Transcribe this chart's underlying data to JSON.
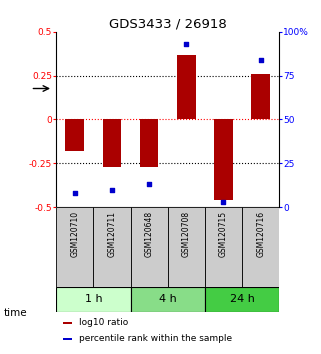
{
  "title": "GDS3433 / 26918",
  "samples": [
    "GSM120710",
    "GSM120711",
    "GSM120648",
    "GSM120708",
    "GSM120715",
    "GSM120716"
  ],
  "log10_ratio": [
    -0.18,
    -0.27,
    -0.27,
    0.37,
    -0.46,
    0.26
  ],
  "percentile_rank": [
    8,
    10,
    13,
    93,
    3,
    84
  ],
  "groups": [
    {
      "label": "1 h",
      "samples": [
        0,
        1
      ],
      "color": "#ccffcc"
    },
    {
      "label": "4 h",
      "samples": [
        2,
        3
      ],
      "color": "#88dd88"
    },
    {
      "label": "24 h",
      "samples": [
        4,
        5
      ],
      "color": "#44cc44"
    }
  ],
  "bar_color": "#aa0000",
  "dot_color": "#0000cc",
  "ylim_left": [
    -0.5,
    0.5
  ],
  "ylim_right": [
    0,
    100
  ],
  "yticks_left": [
    -0.5,
    -0.25,
    0,
    0.25,
    0.5
  ],
  "yticks_right": [
    0,
    25,
    50,
    75,
    100
  ],
  "ytick_labels_left": [
    "-0.5",
    "-0.25",
    "0",
    "0.25",
    "0.5"
  ],
  "ytick_labels_right": [
    "0",
    "25",
    "50",
    "75",
    "100%"
  ],
  "legend_labels": [
    "log10 ratio",
    "percentile rank within the sample"
  ],
  "legend_colors": [
    "#aa0000",
    "#0000cc"
  ],
  "sample_bg_color": "#cccccc",
  "bar_width": 0.5
}
